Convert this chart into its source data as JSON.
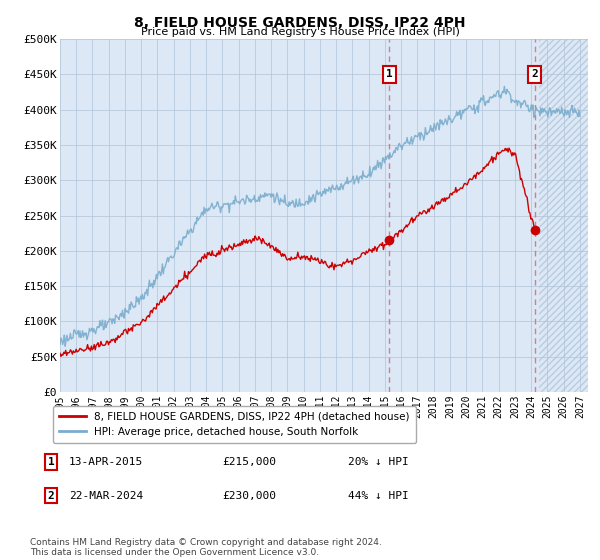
{
  "title": "8, FIELD HOUSE GARDENS, DISS, IP22 4PH",
  "subtitle": "Price paid vs. HM Land Registry's House Price Index (HPI)",
  "ylim": [
    0,
    500000
  ],
  "yticks": [
    0,
    50000,
    100000,
    150000,
    200000,
    250000,
    300000,
    350000,
    400000,
    450000,
    500000
  ],
  "ytick_labels": [
    "£0",
    "£50K",
    "£100K",
    "£150K",
    "£200K",
    "£250K",
    "£300K",
    "£350K",
    "£400K",
    "£450K",
    "£500K"
  ],
  "xlim_start": 1995.0,
  "xlim_end": 2027.5,
  "xticks": [
    1995,
    1996,
    1997,
    1998,
    1999,
    2000,
    2001,
    2002,
    2003,
    2004,
    2005,
    2006,
    2007,
    2008,
    2009,
    2010,
    2011,
    2012,
    2013,
    2014,
    2015,
    2016,
    2017,
    2018,
    2019,
    2020,
    2021,
    2022,
    2023,
    2024,
    2025,
    2026,
    2027
  ],
  "red_line_color": "#cc0000",
  "blue_line_color": "#7aadcc",
  "marker1_date": 2015.28,
  "marker1_label": "1",
  "marker1_price": 215000,
  "marker1_value_label": "£215,000",
  "marker1_hpi_label": "20% ↓ HPI",
  "marker1_date_label": "13-APR-2015",
  "marker2_date": 2024.22,
  "marker2_label": "2",
  "marker2_price": 230000,
  "marker2_value_label": "£230,000",
  "marker2_hpi_label": "44% ↓ HPI",
  "marker2_date_label": "22-MAR-2024",
  "legend_line1": "8, FIELD HOUSE GARDENS, DISS, IP22 4PH (detached house)",
  "legend_line2": "HPI: Average price, detached house, South Norfolk",
  "footnote": "Contains HM Land Registry data © Crown copyright and database right 2024.\nThis data is licensed under the Open Government Licence v3.0.",
  "background_color": "#ffffff",
  "plot_bg_color": "#dce8f5",
  "hatch_region_start": 2024.5,
  "grid_color": "#b0c4d8"
}
